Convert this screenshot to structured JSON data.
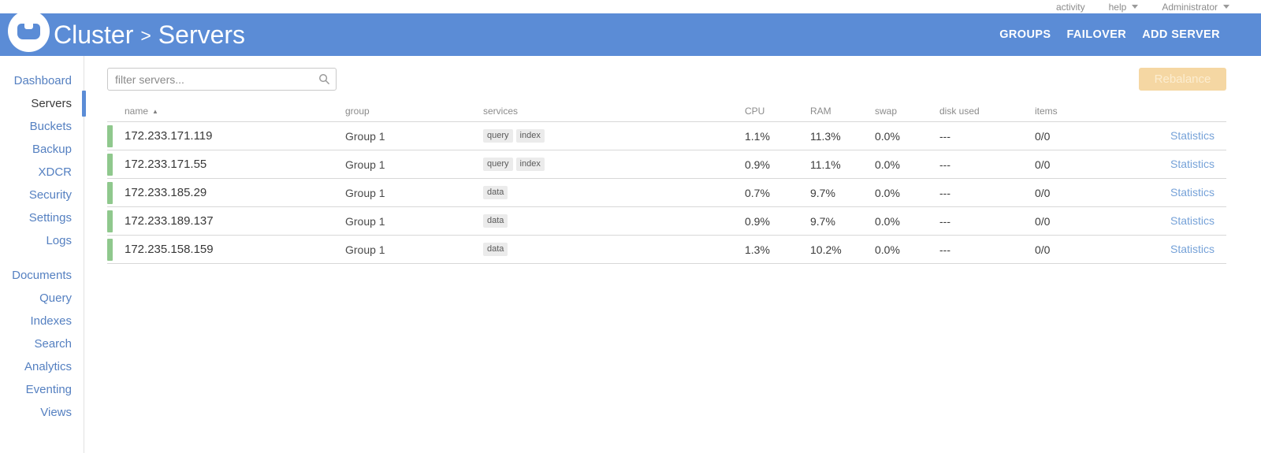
{
  "topbar": {
    "activity": "activity",
    "help": "help",
    "user": "Administrator"
  },
  "header": {
    "title_primary": "Cluster",
    "title_separator": ">",
    "title_secondary": "Servers",
    "menu": [
      {
        "id": "groups",
        "label": "GROUPS"
      },
      {
        "id": "failover",
        "label": "FAILOVER"
      },
      {
        "id": "add-server",
        "label": "ADD SERVER"
      }
    ]
  },
  "sidebar": {
    "group1": [
      {
        "label": "Dashboard",
        "active": false
      },
      {
        "label": "Servers",
        "active": true
      },
      {
        "label": "Buckets",
        "active": false
      },
      {
        "label": "Backup",
        "active": false
      },
      {
        "label": "XDCR",
        "active": false
      },
      {
        "label": "Security",
        "active": false
      },
      {
        "label": "Settings",
        "active": false
      },
      {
        "label": "Logs",
        "active": false
      }
    ],
    "group2": [
      {
        "label": "Documents",
        "active": false
      },
      {
        "label": "Query",
        "active": false
      },
      {
        "label": "Indexes",
        "active": false
      },
      {
        "label": "Search",
        "active": false
      },
      {
        "label": "Analytics",
        "active": false
      },
      {
        "label": "Eventing",
        "active": false
      },
      {
        "label": "Views",
        "active": false
      }
    ]
  },
  "toolbar": {
    "filter_placeholder": "filter servers...",
    "rebalance_label": "Rebalance",
    "rebalance_enabled": false
  },
  "table": {
    "columns": [
      "name",
      "group",
      "services",
      "CPU",
      "RAM",
      "swap",
      "disk used",
      "items"
    ],
    "sort": {
      "column": "name",
      "direction": "ascending"
    },
    "action_label": "Statistics",
    "rows": [
      {
        "name": "172.233.171.119",
        "group": "Group 1",
        "services": [
          "query",
          "index"
        ],
        "cpu": "1.1%",
        "ram": "11.3%",
        "swap": "0.0%",
        "disk_used": "---",
        "items": "0/0",
        "healthy": true
      },
      {
        "name": "172.233.171.55",
        "group": "Group 1",
        "services": [
          "query",
          "index"
        ],
        "cpu": "0.9%",
        "ram": "11.1%",
        "swap": "0.0%",
        "disk_used": "---",
        "items": "0/0",
        "healthy": true
      },
      {
        "name": "172.233.185.29",
        "group": "Group 1",
        "services": [
          "data"
        ],
        "cpu": "0.7%",
        "ram": "9.7%",
        "swap": "0.0%",
        "disk_used": "---",
        "items": "0/0",
        "healthy": true
      },
      {
        "name": "172.233.189.137",
        "group": "Group 1",
        "services": [
          "data"
        ],
        "cpu": "0.9%",
        "ram": "9.7%",
        "swap": "0.0%",
        "disk_used": "---",
        "items": "0/0",
        "healthy": true
      },
      {
        "name": "172.235.158.159",
        "group": "Group 1",
        "services": [
          "data"
        ],
        "cpu": "1.3%",
        "ram": "10.2%",
        "swap": "0.0%",
        "disk_used": "---",
        "items": "0/0",
        "healthy": true
      }
    ]
  },
  "icons": {
    "logo": "couchbase-logo",
    "search": "magnifier",
    "sort_ascending": "up-triangle",
    "dropdown": "down-caret"
  },
  "colors": {
    "header_bg": "#5b8cd6",
    "sidebar_link": "#5580c1",
    "healthy_green": "#8fc88d",
    "rebalance_disabled_bg": "#f5d7a3",
    "statistics_link": "#76a2d8",
    "badge_bg": "#ebebeb"
  }
}
